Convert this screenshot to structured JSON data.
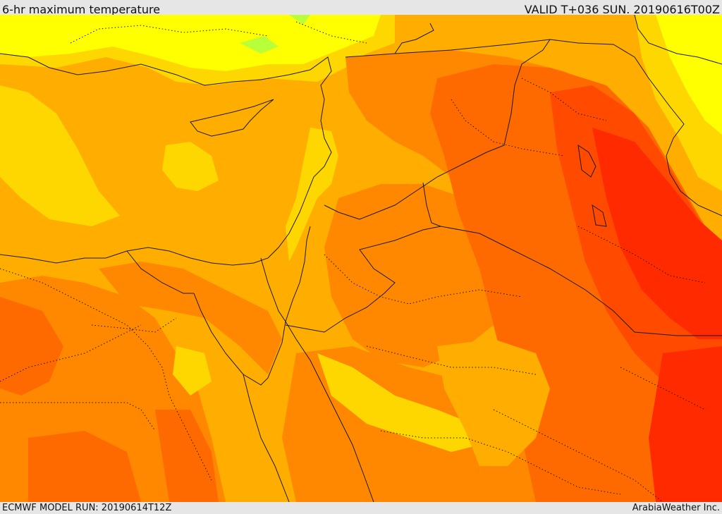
{
  "header": {
    "title": "6-hr maximum temperature",
    "valid": "VALID T+036 SUN. 20190616T00Z"
  },
  "footer": {
    "model_run": "ECMWF MODEL RUN: 20190614T12Z",
    "credit": "ArabiaWeather Inc."
  },
  "colors": {
    "yellow": "#ffff00",
    "gold": "#ffd700",
    "amber": "#ffae00",
    "orange": "#ff8800",
    "dark_orange": "#ff6a00",
    "red_orange": "#ff4a00",
    "red": "#ff2a00",
    "light_green": "#b8ff3a",
    "border": "#1a1a1a"
  }
}
